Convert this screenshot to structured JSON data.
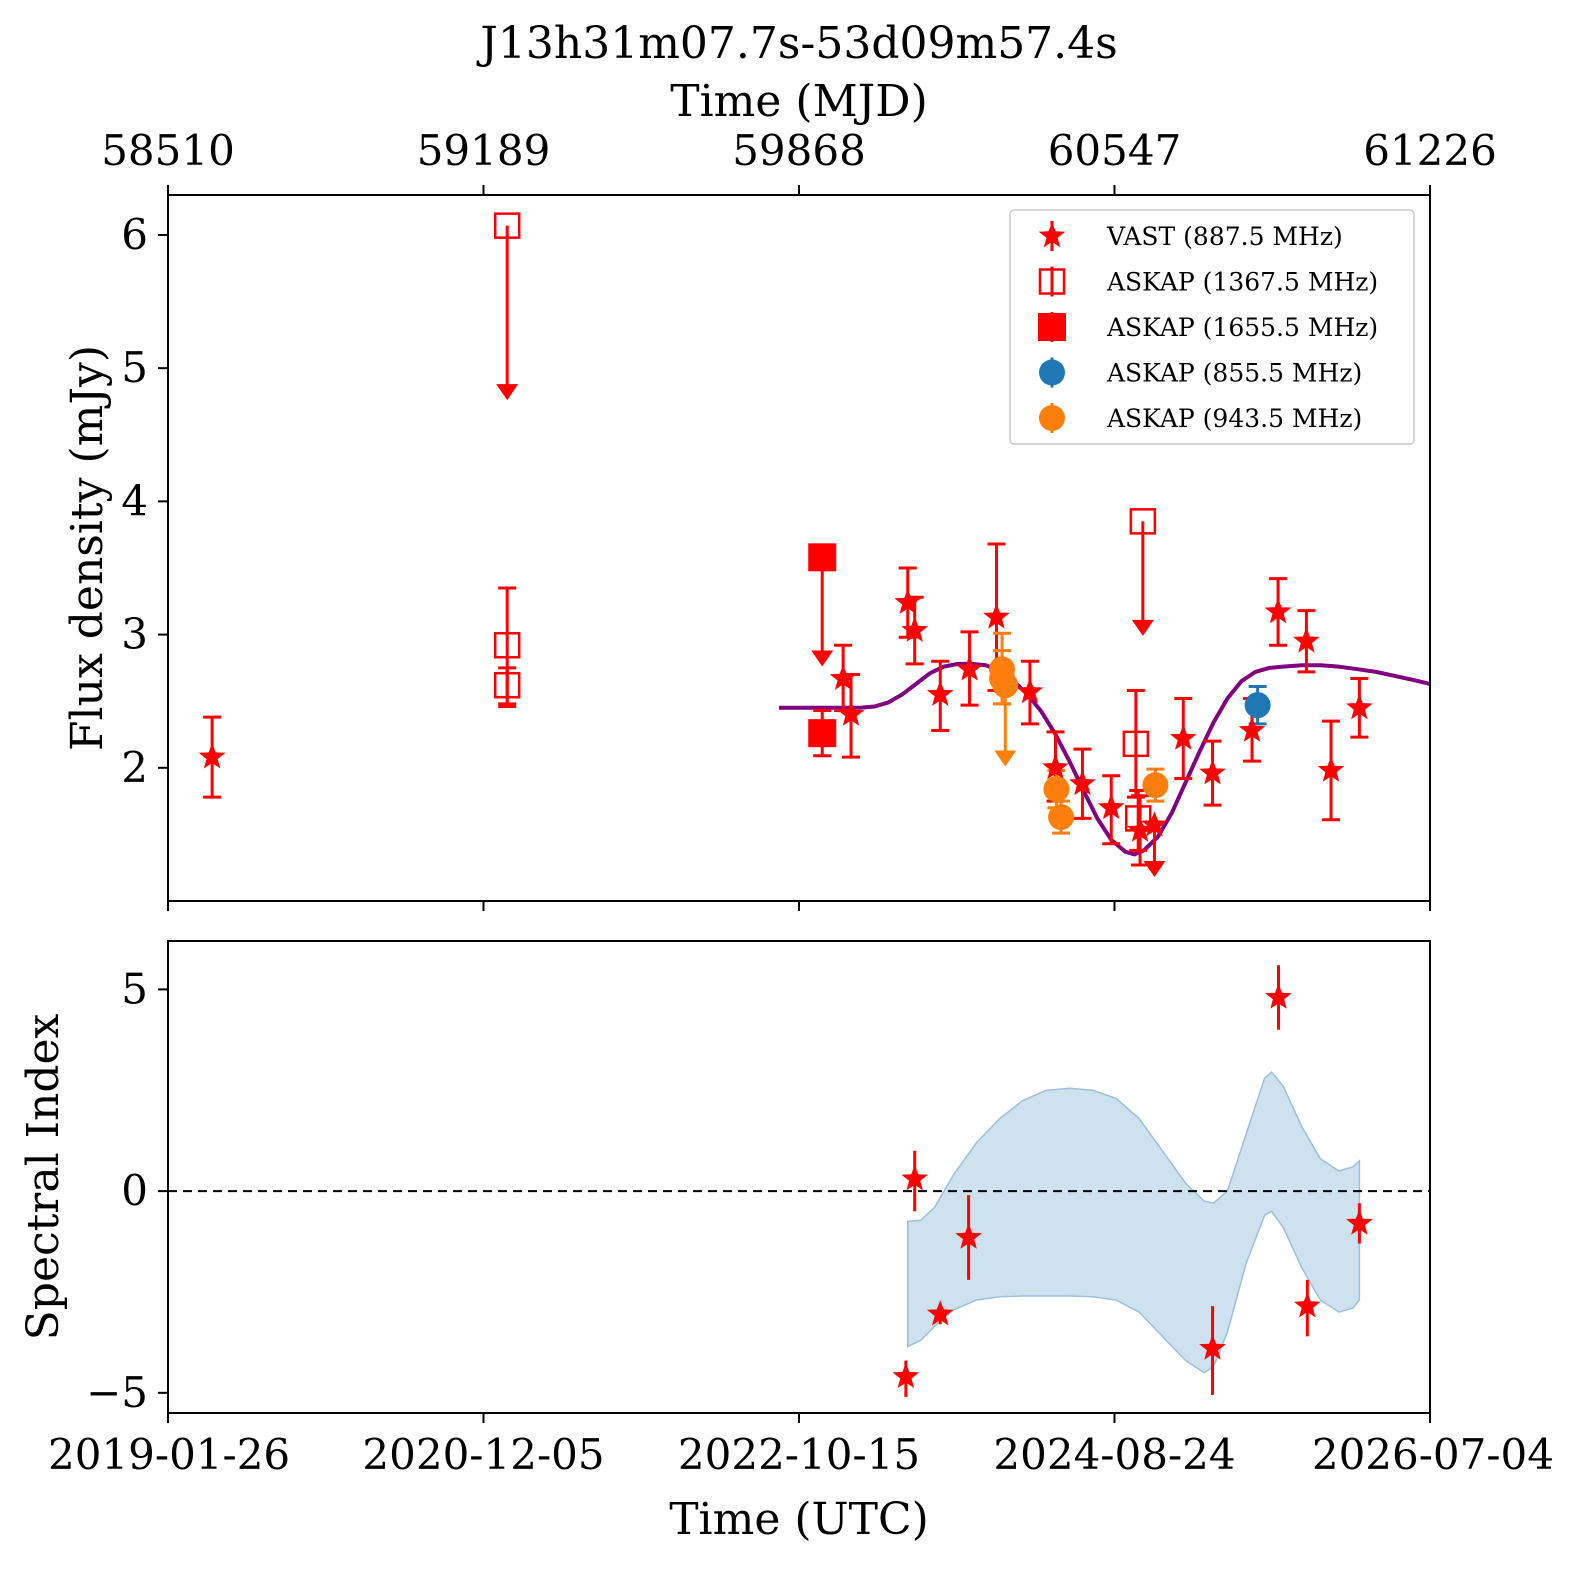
{
  "chart_data": [
    {
      "type": "scatter",
      "panel": "flux",
      "title": "J13h31m07.7s-53d09m57.4s",
      "top_xlabel": "Time (MJD)",
      "top_xticks": [
        "58510",
        "59189",
        "59868",
        "60547",
        "61226"
      ],
      "ylabel": "Flux density (mJy)",
      "yticks": [
        "2",
        "3",
        "4",
        "5",
        "6"
      ],
      "ylim": [
        1.0,
        6.3
      ],
      "xlim_mjd": [
        58510,
        61226
      ],
      "legend_position": "top-right",
      "colors": {
        "red": "#ff0000",
        "blue": "#1f77b4",
        "orange": "#ff7f0e",
        "model": "#800080"
      },
      "series": [
        {
          "name": "VAST (887.5 MHz)",
          "marker": "star",
          "color": "#ff0000",
          "points": [
            {
              "mjd": 58605,
              "y": 2.08,
              "lo": 1.78,
              "hi": 2.38
            },
            {
              "mjd": 59963,
              "y": 2.67,
              "lo": 2.43,
              "hi": 2.92
            },
            {
              "mjd": 59980,
              "y": 2.4,
              "lo": 2.08,
              "hi": 2.7
            },
            {
              "mjd": 60102,
              "y": 3.24,
              "lo": 2.98,
              "hi": 3.5
            },
            {
              "mjd": 60117,
              "y": 3.03,
              "lo": 2.78,
              "hi": 3.28
            },
            {
              "mjd": 60172,
              "y": 2.55,
              "lo": 2.28,
              "hi": 2.8
            },
            {
              "mjd": 60235,
              "y": 2.74,
              "lo": 2.47,
              "hi": 3.02
            },
            {
              "mjd": 60293,
              "y": 3.13,
              "lo": 2.58,
              "hi": 3.68
            },
            {
              "mjd": 60365,
              "y": 2.57,
              "lo": 2.33,
              "hi": 2.8
            },
            {
              "mjd": 60420,
              "y": 2.0,
              "lo": 1.75,
              "hi": 2.27
            },
            {
              "mjd": 60478,
              "y": 1.88,
              "lo": 1.62,
              "hi": 2.14
            },
            {
              "mjd": 60540,
              "y": 1.7,
              "lo": 1.43,
              "hi": 1.94
            },
            {
              "mjd": 60602,
              "y": 1.53,
              "lo": 1.27,
              "hi": 1.79
            },
            {
              "mjd": 60695,
              "y": 2.22,
              "lo": 1.92,
              "hi": 2.52
            },
            {
              "mjd": 60758,
              "y": 1.96,
              "lo": 1.72,
              "hi": 2.2
            },
            {
              "mjd": 60843,
              "y": 2.28,
              "lo": 2.05,
              "hi": 2.52
            },
            {
              "mjd": 60899,
              "y": 3.17,
              "lo": 2.92,
              "hi": 3.42
            },
            {
              "mjd": 60960,
              "y": 2.95,
              "lo": 2.72,
              "hi": 3.18
            },
            {
              "mjd": 61013,
              "y": 1.98,
              "lo": 1.61,
              "hi": 2.35
            },
            {
              "mjd": 61074,
              "y": 2.45,
              "lo": 2.23,
              "hi": 2.67
            }
          ],
          "upper_limits": [
            {
              "mjd": 60633,
              "y": 1.57,
              "to": 1.18
            }
          ]
        },
        {
          "name": "ASKAP (1367.5 MHz)",
          "marker": "square-open",
          "color": "#ff0000",
          "points": [
            {
              "mjd": 59240,
              "y": 2.92,
              "lo": 2.48,
              "hi": 3.35
            },
            {
              "mjd": 59240,
              "y": 2.62,
              "lo": 2.46,
              "hi": 2.75
            },
            {
              "mjd": 60593,
              "y": 2.18,
              "lo": 1.78,
              "hi": 2.58
            },
            {
              "mjd": 60598,
              "y": 1.62,
              "lo": 1.38,
              "hi": 1.83
            }
          ],
          "upper_limits": [
            {
              "mjd": 59240,
              "y": 6.07,
              "to": 4.76
            },
            {
              "mjd": 60608,
              "y": 3.85,
              "to": 2.99
            }
          ]
        },
        {
          "name": "ASKAP (1655.5 MHz)",
          "marker": "square-filled",
          "color": "#ff0000",
          "points": [
            {
              "mjd": 59918,
              "y": 2.26,
              "lo": 2.09,
              "hi": 2.43
            }
          ],
          "upper_limits": [
            {
              "mjd": 59918,
              "y": 3.58,
              "to": 2.76
            }
          ]
        },
        {
          "name": "ASKAP (855.5 MHz)",
          "marker": "circle",
          "color": "#1f77b4",
          "points": [
            {
              "mjd": 60855,
              "y": 2.47,
              "lo": 2.33,
              "hi": 2.61
            }
          ],
          "upper_limits": []
        },
        {
          "name": "ASKAP (943.5 MHz)",
          "marker": "circle",
          "color": "#ff7f0e",
          "points": [
            {
              "mjd": 60305,
              "y": 2.74,
              "lo": 2.48,
              "hi": 3.01
            },
            {
              "mjd": 60305,
              "y": 2.67,
              "lo": 2.48,
              "hi": 2.88
            },
            {
              "mjd": 60422,
              "y": 1.84,
              "lo": 1.7,
              "hi": 1.98
            },
            {
              "mjd": 60432,
              "y": 1.63,
              "lo": 1.51,
              "hi": 1.75
            },
            {
              "mjd": 60635,
              "y": 1.87,
              "lo": 1.75,
              "hi": 1.99
            }
          ],
          "upper_limits": [
            {
              "mjd": 60312,
              "y": 2.62,
              "to": 2.01
            }
          ]
        }
      ],
      "model_curve": {
        "color": "#800080",
        "points": [
          [
            59825,
            2.45
          ],
          [
            59900,
            2.45
          ],
          [
            59960,
            2.45
          ],
          [
            60000,
            2.45
          ],
          [
            60030,
            2.46
          ],
          [
            60060,
            2.49
          ],
          [
            60090,
            2.55
          ],
          [
            60120,
            2.63
          ],
          [
            60150,
            2.71
          ],
          [
            60180,
            2.76
          ],
          [
            60210,
            2.78
          ],
          [
            60240,
            2.78
          ],
          [
            60270,
            2.77
          ],
          [
            60300,
            2.73
          ],
          [
            60330,
            2.65
          ],
          [
            60360,
            2.55
          ],
          [
            60390,
            2.42
          ],
          [
            60420,
            2.25
          ],
          [
            60450,
            2.05
          ],
          [
            60480,
            1.83
          ],
          [
            60510,
            1.62
          ],
          [
            60540,
            1.46
          ],
          [
            60570,
            1.37
          ],
          [
            60590,
            1.35
          ],
          [
            60610,
            1.38
          ],
          [
            60640,
            1.48
          ],
          [
            60670,
            1.66
          ],
          [
            60700,
            1.89
          ],
          [
            60730,
            2.12
          ],
          [
            60760,
            2.34
          ],
          [
            60790,
            2.52
          ],
          [
            60820,
            2.65
          ],
          [
            60850,
            2.72
          ],
          [
            60880,
            2.75
          ],
          [
            60910,
            2.76
          ],
          [
            60950,
            2.77
          ],
          [
            60990,
            2.77
          ],
          [
            61030,
            2.76
          ],
          [
            61070,
            2.74
          ],
          [
            61110,
            2.72
          ],
          [
            61150,
            2.69
          ],
          [
            61190,
            2.66
          ],
          [
            61226,
            2.63
          ]
        ]
      }
    },
    {
      "type": "scatter",
      "panel": "spectral-index",
      "xlabel": "Time (UTC)",
      "xticks": [
        "2019-01-26",
        "2020-12-05",
        "2022-10-15",
        "2024-08-24",
        "2026-07-04"
      ],
      "ylabel": "Spectral Index",
      "yticks": [
        "5",
        "0",
        "−5"
      ],
      "ylim": [
        -5.5,
        6.2
      ],
      "reference_line": 0,
      "points": [
        {
          "mjd": 60098,
          "y": -4.6,
          "lo": -5.1,
          "hi": -4.2
        },
        {
          "mjd": 60117,
          "y": 0.3,
          "lo": -0.5,
          "hi": 1.0
        },
        {
          "mjd": 60172,
          "y": -3.05,
          "lo": -3.3,
          "hi": -2.8
        },
        {
          "mjd": 60233,
          "y": -1.15,
          "lo": -2.2,
          "hi": -0.1
        },
        {
          "mjd": 60758,
          "y": -3.9,
          "lo": -5.05,
          "hi": -2.85
        },
        {
          "mjd": 60900,
          "y": 4.8,
          "lo": 4.0,
          "hi": 5.6
        },
        {
          "mjd": 60962,
          "y": -2.85,
          "lo": -3.6,
          "hi": -2.2
        },
        {
          "mjd": 61074,
          "y": -0.8,
          "lo": -1.3,
          "hi": -0.3
        }
      ],
      "band": {
        "color": "#b9d4e7",
        "upper": [
          [
            60102,
            -0.75
          ],
          [
            60130,
            -0.72
          ],
          [
            60160,
            -0.4
          ],
          [
            60200,
            0.4
          ],
          [
            60250,
            1.2
          ],
          [
            60300,
            1.8
          ],
          [
            60350,
            2.25
          ],
          [
            60400,
            2.5
          ],
          [
            60450,
            2.55
          ],
          [
            60500,
            2.5
          ],
          [
            60550,
            2.3
          ],
          [
            60600,
            1.8
          ],
          [
            60650,
            1.0
          ],
          [
            60700,
            0.2
          ],
          [
            60740,
            -0.25
          ],
          [
            60760,
            -0.3
          ],
          [
            60790,
            0.0
          ],
          [
            60830,
            1.4
          ],
          [
            60870,
            2.8
          ],
          [
            60885,
            2.95
          ],
          [
            60910,
            2.6
          ],
          [
            60950,
            1.6
          ],
          [
            60990,
            0.8
          ],
          [
            61030,
            0.5
          ],
          [
            61060,
            0.6
          ],
          [
            61074,
            0.75
          ]
        ],
        "lower": [
          [
            60102,
            -3.85
          ],
          [
            60130,
            -3.7
          ],
          [
            60160,
            -3.35
          ],
          [
            60200,
            -2.95
          ],
          [
            60250,
            -2.7
          ],
          [
            60300,
            -2.62
          ],
          [
            60350,
            -2.6
          ],
          [
            60400,
            -2.6
          ],
          [
            60450,
            -2.6
          ],
          [
            60500,
            -2.62
          ],
          [
            60550,
            -2.7
          ],
          [
            60600,
            -3.0
          ],
          [
            60650,
            -3.6
          ],
          [
            60700,
            -4.2
          ],
          [
            60740,
            -4.5
          ],
          [
            60760,
            -4.35
          ],
          [
            60790,
            -3.5
          ],
          [
            60830,
            -1.8
          ],
          [
            60870,
            -0.6
          ],
          [
            60885,
            -0.5
          ],
          [
            60910,
            -0.9
          ],
          [
            60950,
            -1.9
          ],
          [
            60990,
            -2.7
          ],
          [
            61030,
            -3.0
          ],
          [
            61060,
            -2.9
          ],
          [
            61074,
            -2.7
          ]
        ]
      }
    }
  ]
}
